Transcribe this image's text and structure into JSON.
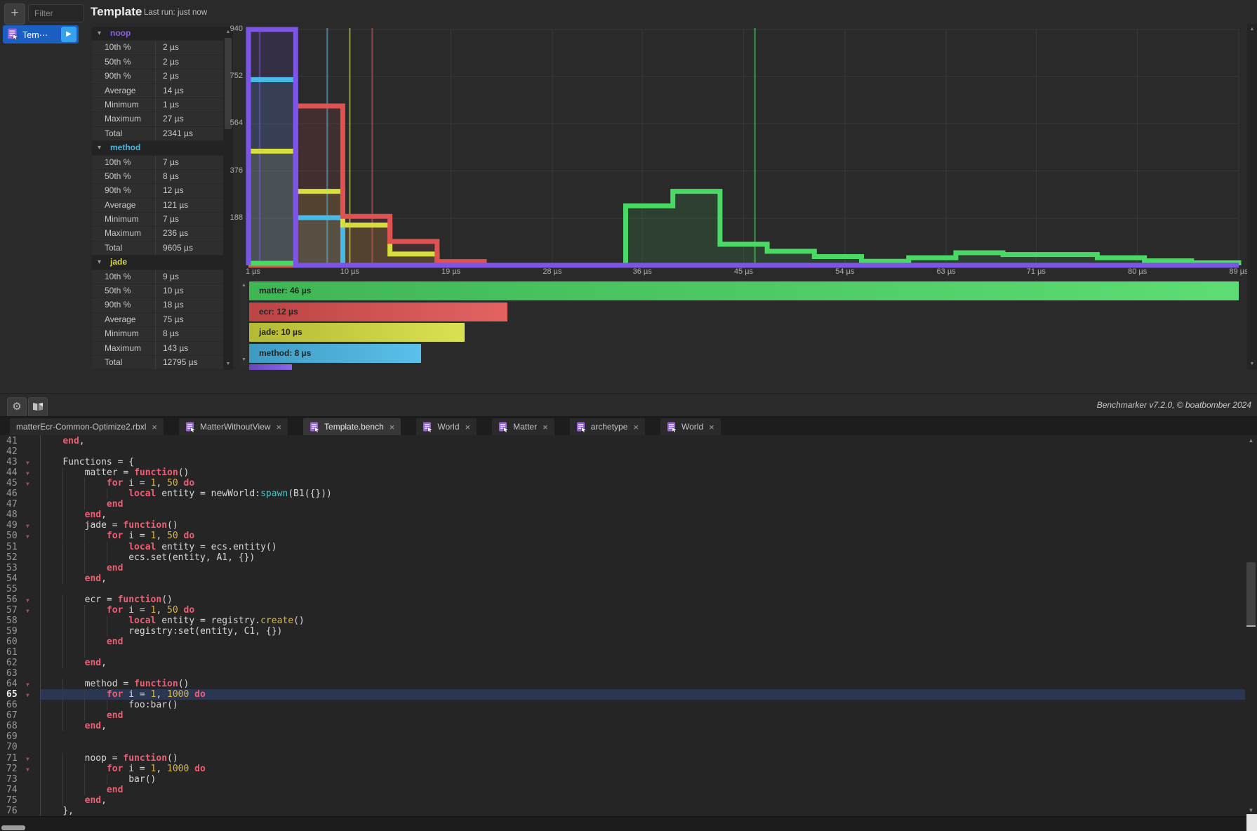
{
  "app": {
    "bg": "#2a2a2a",
    "accent_blue": "#1b5fc2"
  },
  "sidebar": {
    "add_label": "+",
    "filter_placeholder": "Filter",
    "item": {
      "label": "Tem⋯",
      "play_icon": "▶"
    }
  },
  "header": {
    "title": "Template",
    "last_run": "Last run: just now"
  },
  "stats": {
    "sections": [
      {
        "name": "noop",
        "color": "#8d5fe0",
        "rows": [
          [
            "10th %",
            "2 µs"
          ],
          [
            "50th %",
            "2 µs"
          ],
          [
            "90th %",
            "2 µs"
          ],
          [
            "Average",
            "14 µs"
          ],
          [
            "Minimum",
            "1 µs"
          ],
          [
            "Maximum",
            "27 µs"
          ],
          [
            "Total",
            "2341 µs"
          ]
        ]
      },
      {
        "name": "method",
        "color": "#4ab4dc",
        "rows": [
          [
            "10th %",
            "7 µs"
          ],
          [
            "50th %",
            "8 µs"
          ],
          [
            "90th %",
            "12 µs"
          ],
          [
            "Average",
            "121 µs"
          ],
          [
            "Minimum",
            "7 µs"
          ],
          [
            "Maximum",
            "236 µs"
          ],
          [
            "Total",
            "9605 µs"
          ]
        ]
      },
      {
        "name": "jade",
        "color": "#d4d84a",
        "rows": [
          [
            "10th %",
            "9 µs"
          ],
          [
            "50th %",
            "10 µs"
          ],
          [
            "90th %",
            "18 µs"
          ],
          [
            "Average",
            "75 µs"
          ],
          [
            "Minimum",
            "8 µs"
          ],
          [
            "Maximum",
            "143 µs"
          ],
          [
            "Total",
            "12795 µs"
          ]
        ]
      }
    ]
  },
  "chart_data": {
    "type": "histogram-step",
    "title": "",
    "x_range": [
      1,
      89
    ],
    "y_range": [
      0,
      940
    ],
    "y_ticks": [
      188,
      376,
      564,
      752,
      940
    ],
    "x_tick_values": [
      1,
      10,
      19,
      28,
      36,
      45,
      54,
      63,
      71,
      80,
      89
    ],
    "x_tick_labels": [
      "1 µs",
      "10 µs",
      "19 µs",
      "28 µs",
      "36 µs",
      "45 µs",
      "54 µs",
      "63 µs",
      "71 µs",
      "80 µs",
      "89 µs"
    ],
    "bin_start": 1,
    "bin_width": 4.1905,
    "bin_count": 21,
    "grid": true,
    "series": [
      {
        "name": "method",
        "color": "#49b9e8",
        "marker_us": 8,
        "bins": [
          740,
          190,
          0,
          0,
          0,
          0,
          0,
          0,
          0,
          0,
          0,
          0,
          0,
          0,
          0,
          0,
          0,
          0,
          0,
          0,
          0
        ]
      },
      {
        "name": "jade",
        "color": "#d6de3e",
        "marker_us": 10,
        "bins": [
          455,
          295,
          160,
          45,
          0,
          0,
          0,
          0,
          0,
          0,
          0,
          0,
          0,
          0,
          0,
          0,
          0,
          0,
          0,
          0,
          0
        ]
      },
      {
        "name": "ecr",
        "color": "#e05151",
        "marker_us": 12,
        "bins": [
          0,
          635,
          195,
          95,
          15,
          0,
          0,
          0,
          0,
          0,
          0,
          0,
          0,
          0,
          0,
          0,
          0,
          0,
          0,
          0,
          0
        ]
      },
      {
        "name": "matter",
        "color": "#4ad964",
        "marker_us": 46,
        "bins": [
          8,
          0,
          0,
          0,
          0,
          0,
          0,
          0,
          237,
          295,
          84,
          56,
          35,
          16,
          30,
          50,
          43,
          43,
          30,
          18,
          10
        ]
      },
      {
        "name": "noop",
        "color": "#7d55e6",
        "marker_us": 2,
        "bins": [
          940,
          0,
          0,
          0,
          0,
          0,
          0,
          0,
          0,
          0,
          0,
          0,
          0,
          0,
          0,
          0,
          0,
          0,
          0,
          0,
          0
        ]
      }
    ]
  },
  "legend": {
    "max_value": 46,
    "items": [
      {
        "label": "matter: 46 µs",
        "value": 46,
        "color": "#4ad964"
      },
      {
        "label": "ecr: 12 µs",
        "value": 12,
        "color": "#e05151"
      },
      {
        "label": "jade: 10 µs",
        "value": 10,
        "color": "#d6de3e"
      },
      {
        "label": "method: 8 µs",
        "value": 8,
        "color": "#49b9e8"
      },
      {
        "label": "",
        "value": 2,
        "color": "#7d55e6"
      }
    ]
  },
  "toolbar": {
    "credit": "Benchmarker v7.2.0, © boatbomber 2024"
  },
  "tabs": [
    {
      "label": "matterEcr-Common-Optimize2.rbxl",
      "icon": false,
      "active": false
    },
    {
      "label": "MatterWithoutView",
      "icon": true,
      "active": false
    },
    {
      "label": "Template.bench",
      "icon": true,
      "active": true
    },
    {
      "label": "World",
      "icon": true,
      "active": false
    },
    {
      "label": "Matter",
      "icon": true,
      "active": false
    },
    {
      "label": "archetype",
      "icon": true,
      "active": false
    },
    {
      "label": "World",
      "icon": true,
      "active": false
    }
  ],
  "editor": {
    "current_line": 65,
    "lines": [
      {
        "n": 41,
        "ind": 1,
        "fold": false,
        "g": [],
        "t": [
          [
            "k",
            "end"
          ],
          [
            "p",
            ","
          ]
        ]
      },
      {
        "n": 42,
        "ind": 0,
        "fold": false,
        "g": [],
        "t": []
      },
      {
        "n": 43,
        "ind": 1,
        "fold": true,
        "g": [],
        "t": [
          [
            "p",
            "Functions = {"
          ]
        ]
      },
      {
        "n": 44,
        "ind": 2,
        "fold": true,
        "g": [
          1
        ],
        "t": [
          [
            "p",
            "matter = "
          ],
          [
            "k",
            "function"
          ],
          [
            "p",
            "()"
          ]
        ]
      },
      {
        "n": 45,
        "ind": 3,
        "fold": true,
        "g": [
          1,
          2
        ],
        "t": [
          [
            "k",
            "for"
          ],
          [
            "p",
            " i = "
          ],
          [
            "n",
            "1"
          ],
          [
            "p",
            ", "
          ],
          [
            "n",
            "50"
          ],
          [
            "p",
            " "
          ],
          [
            "k",
            "do"
          ]
        ]
      },
      {
        "n": 46,
        "ind": 4,
        "fold": false,
        "g": [
          1,
          2,
          3
        ],
        "t": [
          [
            "k",
            "local"
          ],
          [
            "p",
            " entity = newWorld:"
          ],
          [
            "b",
            "spawn"
          ],
          [
            "p",
            "(B1({}))"
          ]
        ]
      },
      {
        "n": 47,
        "ind": 3,
        "fold": false,
        "g": [
          1,
          2
        ],
        "t": [
          [
            "k",
            "end"
          ]
        ]
      },
      {
        "n": 48,
        "ind": 2,
        "fold": false,
        "g": [
          1
        ],
        "t": [
          [
            "k",
            "end"
          ],
          [
            "p",
            ","
          ]
        ]
      },
      {
        "n": 49,
        "ind": 2,
        "fold": true,
        "g": [
          1
        ],
        "t": [
          [
            "p",
            "jade = "
          ],
          [
            "k",
            "function"
          ],
          [
            "p",
            "()"
          ]
        ]
      },
      {
        "n": 50,
        "ind": 3,
        "fold": true,
        "g": [
          1,
          2
        ],
        "t": [
          [
            "k",
            "for"
          ],
          [
            "p",
            " i = "
          ],
          [
            "n",
            "1"
          ],
          [
            "p",
            ", "
          ],
          [
            "n",
            "50"
          ],
          [
            "p",
            " "
          ],
          [
            "k",
            "do"
          ]
        ]
      },
      {
        "n": 51,
        "ind": 4,
        "fold": false,
        "g": [
          1,
          2,
          3
        ],
        "t": [
          [
            "k",
            "local"
          ],
          [
            "p",
            " entity = ecs.entity()"
          ]
        ]
      },
      {
        "n": 52,
        "ind": 4,
        "fold": false,
        "g": [
          1,
          2,
          3
        ],
        "t": [
          [
            "p",
            "ecs.set(entity, A1, {})"
          ]
        ]
      },
      {
        "n": 53,
        "ind": 3,
        "fold": false,
        "g": [
          1,
          2
        ],
        "t": [
          [
            "k",
            "end"
          ]
        ]
      },
      {
        "n": 54,
        "ind": 2,
        "fold": false,
        "g": [
          1
        ],
        "t": [
          [
            "k",
            "end"
          ],
          [
            "p",
            ","
          ]
        ]
      },
      {
        "n": 55,
        "ind": 0,
        "fold": false,
        "g": [],
        "t": []
      },
      {
        "n": 56,
        "ind": 2,
        "fold": true,
        "g": [
          1
        ],
        "t": [
          [
            "p",
            "ecr = "
          ],
          [
            "k",
            "function"
          ],
          [
            "p",
            "()"
          ]
        ]
      },
      {
        "n": 57,
        "ind": 3,
        "fold": true,
        "g": [
          1,
          2
        ],
        "t": [
          [
            "k",
            "for"
          ],
          [
            "p",
            " i = "
          ],
          [
            "n",
            "1"
          ],
          [
            "p",
            ", "
          ],
          [
            "n",
            "50"
          ],
          [
            "p",
            " "
          ],
          [
            "k",
            "do"
          ]
        ]
      },
      {
        "n": 58,
        "ind": 4,
        "fold": false,
        "g": [
          1,
          2,
          3
        ],
        "t": [
          [
            "k",
            "local"
          ],
          [
            "p",
            " entity = registry."
          ],
          [
            "n",
            "create"
          ],
          [
            "p",
            "()"
          ]
        ]
      },
      {
        "n": 59,
        "ind": 4,
        "fold": false,
        "g": [
          1,
          2,
          3
        ],
        "t": [
          [
            "p",
            "registry:set(entity, C1, {})"
          ]
        ]
      },
      {
        "n": 60,
        "ind": 3,
        "fold": false,
        "g": [
          1,
          2
        ],
        "t": [
          [
            "k",
            "end"
          ]
        ]
      },
      {
        "n": 61,
        "ind": 0,
        "fold": false,
        "g": [
          1,
          2
        ],
        "t": []
      },
      {
        "n": 62,
        "ind": 2,
        "fold": false,
        "g": [
          1
        ],
        "t": [
          [
            "k",
            "end"
          ],
          [
            "p",
            ","
          ]
        ]
      },
      {
        "n": 63,
        "ind": 0,
        "fold": false,
        "g": [],
        "t": []
      },
      {
        "n": 64,
        "ind": 2,
        "fold": true,
        "g": [
          1
        ],
        "t": [
          [
            "p",
            "method = "
          ],
          [
            "k",
            "function"
          ],
          [
            "p",
            "()"
          ]
        ]
      },
      {
        "n": 65,
        "ind": 3,
        "fold": true,
        "g": [
          1,
          2
        ],
        "t": [
          [
            "k",
            "for"
          ],
          [
            "p",
            " i = "
          ],
          [
            "n",
            "1"
          ],
          [
            "p",
            ", "
          ],
          [
            "n",
            "1000"
          ],
          [
            "p",
            " "
          ],
          [
            "k",
            "do"
          ]
        ]
      },
      {
        "n": 66,
        "ind": 4,
        "fold": false,
        "g": [
          1,
          2,
          3
        ],
        "t": [
          [
            "p",
            "foo:bar()"
          ]
        ]
      },
      {
        "n": 67,
        "ind": 3,
        "fold": false,
        "g": [
          1,
          2
        ],
        "t": [
          [
            "k",
            "end"
          ]
        ]
      },
      {
        "n": 68,
        "ind": 2,
        "fold": false,
        "g": [
          1
        ],
        "t": [
          [
            "k",
            "end"
          ],
          [
            "p",
            ","
          ]
        ]
      },
      {
        "n": 69,
        "ind": 0,
        "fold": false,
        "g": [],
        "t": []
      },
      {
        "n": 70,
        "ind": 0,
        "fold": false,
        "g": [],
        "t": []
      },
      {
        "n": 71,
        "ind": 2,
        "fold": true,
        "g": [
          1
        ],
        "t": [
          [
            "p",
            "noop = "
          ],
          [
            "k",
            "function"
          ],
          [
            "p",
            "()"
          ]
        ]
      },
      {
        "n": 72,
        "ind": 3,
        "fold": true,
        "g": [
          1,
          2
        ],
        "t": [
          [
            "k",
            "for"
          ],
          [
            "p",
            " i = "
          ],
          [
            "n",
            "1"
          ],
          [
            "p",
            ", "
          ],
          [
            "n",
            "1000"
          ],
          [
            "p",
            " "
          ],
          [
            "k",
            "do"
          ]
        ]
      },
      {
        "n": 73,
        "ind": 4,
        "fold": false,
        "g": [
          1,
          2,
          3
        ],
        "t": [
          [
            "p",
            "bar()"
          ]
        ]
      },
      {
        "n": 74,
        "ind": 3,
        "fold": false,
        "g": [
          1,
          2
        ],
        "t": [
          [
            "k",
            "end"
          ]
        ]
      },
      {
        "n": 75,
        "ind": 2,
        "fold": false,
        "g": [
          1
        ],
        "t": [
          [
            "k",
            "end"
          ],
          [
            "p",
            ","
          ]
        ]
      },
      {
        "n": 76,
        "ind": 1,
        "fold": false,
        "g": [],
        "t": [
          [
            "p",
            "},"
          ]
        ]
      }
    ]
  }
}
